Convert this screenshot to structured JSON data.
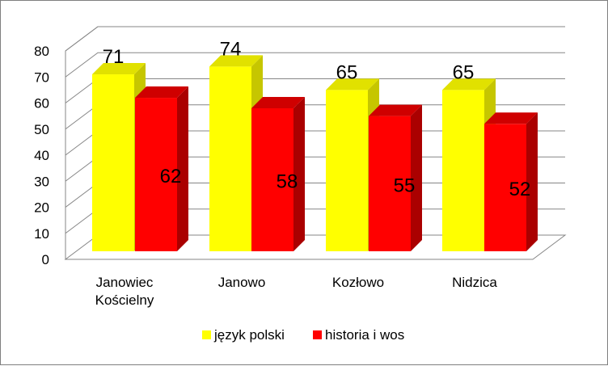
{
  "chart_data": {
    "type": "bar",
    "categories": [
      "Janowiec Kościelny",
      "Janowo",
      "Kozłowo",
      "Nidzica"
    ],
    "series": [
      {
        "name": "język polski",
        "values": [
          71,
          74,
          65,
          65
        ]
      },
      {
        "name": "historia i wos",
        "values": [
          62,
          58,
          55,
          52
        ]
      }
    ],
    "yticks": [
      "0",
      "10",
      "20",
      "30",
      "40",
      "50",
      "60",
      "70",
      "80"
    ],
    "ylim": [
      0,
      80
    ],
    "grid": true,
    "three_d": true,
    "legend_position": "bottom",
    "colors": {
      "język polski": {
        "front": "#ffff00",
        "side": "#c6c600",
        "top": "#e1e100"
      },
      "historia i wos": {
        "front": "#ff0000",
        "side": "#aa0000",
        "top": "#cf0000"
      }
    }
  }
}
